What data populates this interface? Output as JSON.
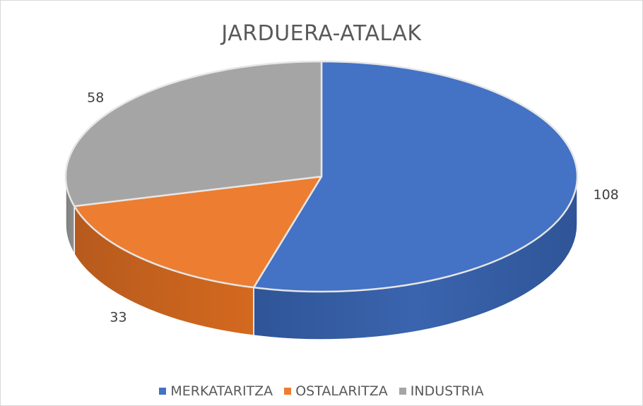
{
  "chart_data": {
    "type": "pie",
    "title": "JARDUERA-ATALAK",
    "categories": [
      "MERKATARITZA",
      "OSTALARITZA",
      "INDUSTRIA"
    ],
    "values": [
      108,
      33,
      58
    ],
    "colors": [
      "#4472c4",
      "#ed7d31",
      "#a5a5a5"
    ],
    "legend_position": "bottom",
    "show_data_labels": true
  }
}
